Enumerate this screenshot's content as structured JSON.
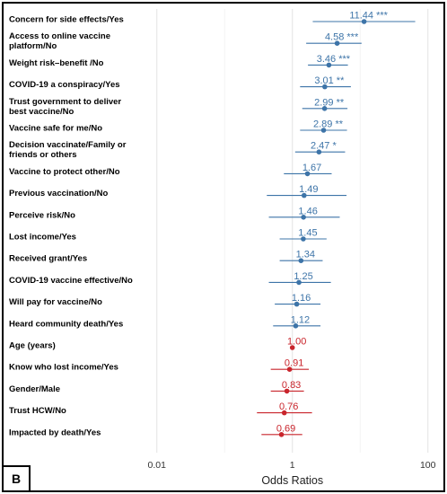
{
  "panel_label": "B",
  "chart_data": {
    "type": "scatter",
    "subtype": "forest-plot",
    "xlabel": "Odds Ratios",
    "x_scale": "log",
    "xlim": [
      0.005,
      150
    ],
    "x_ticks": [
      0.01,
      1,
      100
    ],
    "x_tick_labels": [
      "0.01",
      "1",
      "100"
    ],
    "reference_line": 1,
    "grid": "vertical only",
    "colors": {
      "above_one": "#3d74a8",
      "at_or_below_one": "#c9252c"
    },
    "rows": [
      {
        "label": "Concern for side effects/Yes",
        "or": 11.44,
        "ci": [
          2.0,
          65
        ],
        "sig": "***",
        "text": "11.44 ***"
      },
      {
        "label": "Access to online vaccine platform/No",
        "or": 4.58,
        "ci": [
          1.6,
          10.5
        ],
        "sig": "***",
        "text": "4.58 ***"
      },
      {
        "label": "Weight risk–benefit /No",
        "or": 3.46,
        "ci": [
          1.7,
          6.6
        ],
        "sig": "***",
        "text": "3.46 ***"
      },
      {
        "label": "COVID-19 a conspiracy/Yes",
        "or": 3.01,
        "ci": [
          1.3,
          7.3
        ],
        "sig": "**",
        "text": "3.01 **"
      },
      {
        "label": "Trust government to deliver best vaccine/No",
        "or": 2.99,
        "ci": [
          1.4,
          6.5
        ],
        "sig": "**",
        "text": "2.99 **"
      },
      {
        "label": "Vaccine safe for me/No",
        "or": 2.89,
        "ci": [
          1.3,
          6.4
        ],
        "sig": "**",
        "text": "2.89 **"
      },
      {
        "label": "Decision vaccinate/Family or friends or others",
        "or": 2.47,
        "ci": [
          1.1,
          6.0
        ],
        "sig": "*",
        "text": "2.47 *"
      },
      {
        "label": "Vaccine to protect other/No",
        "or": 1.67,
        "ci": [
          0.75,
          3.8
        ],
        "sig": "",
        "text": "1.67"
      },
      {
        "label": "Previous vaccination/No",
        "or": 1.49,
        "ci": [
          0.42,
          6.3
        ],
        "sig": "",
        "text": "1.49"
      },
      {
        "label": "Perceive risk/No",
        "or": 1.46,
        "ci": [
          0.45,
          5.0
        ],
        "sig": "",
        "text": "1.46"
      },
      {
        "label": "Lost income/Yes",
        "or": 1.45,
        "ci": [
          0.65,
          3.2
        ],
        "sig": "",
        "text": "1.45"
      },
      {
        "label": "Received grant/Yes",
        "or": 1.34,
        "ci": [
          0.65,
          2.8
        ],
        "sig": "",
        "text": "1.34"
      },
      {
        "label": "COVID-19 vaccine effective/No",
        "or": 1.25,
        "ci": [
          0.45,
          3.7
        ],
        "sig": "",
        "text": "1.25"
      },
      {
        "label": "Will pay for vaccine/No",
        "or": 1.16,
        "ci": [
          0.55,
          2.6
        ],
        "sig": "",
        "text": "1.16"
      },
      {
        "label": "Heard community death/Yes",
        "or": 1.12,
        "ci": [
          0.52,
          2.6
        ],
        "sig": "",
        "text": "1.12"
      },
      {
        "label": "Age (years)",
        "or": 1.0,
        "ci": [
          0.97,
          1.03
        ],
        "sig": "",
        "text": "1.00"
      },
      {
        "label": "Know who lost income/Yes",
        "or": 0.91,
        "ci": [
          0.48,
          1.75
        ],
        "sig": "",
        "text": "0.91"
      },
      {
        "label": "Gender/Male",
        "or": 0.83,
        "ci": [
          0.48,
          1.48
        ],
        "sig": "",
        "text": "0.83"
      },
      {
        "label": "Trust HCW/No",
        "or": 0.76,
        "ci": [
          0.3,
          1.95
        ],
        "sig": "",
        "text": "0.76"
      },
      {
        "label": "Impacted by death/Yes",
        "or": 0.69,
        "ci": [
          0.35,
          1.4
        ],
        "sig": "",
        "text": "0.69"
      }
    ]
  }
}
